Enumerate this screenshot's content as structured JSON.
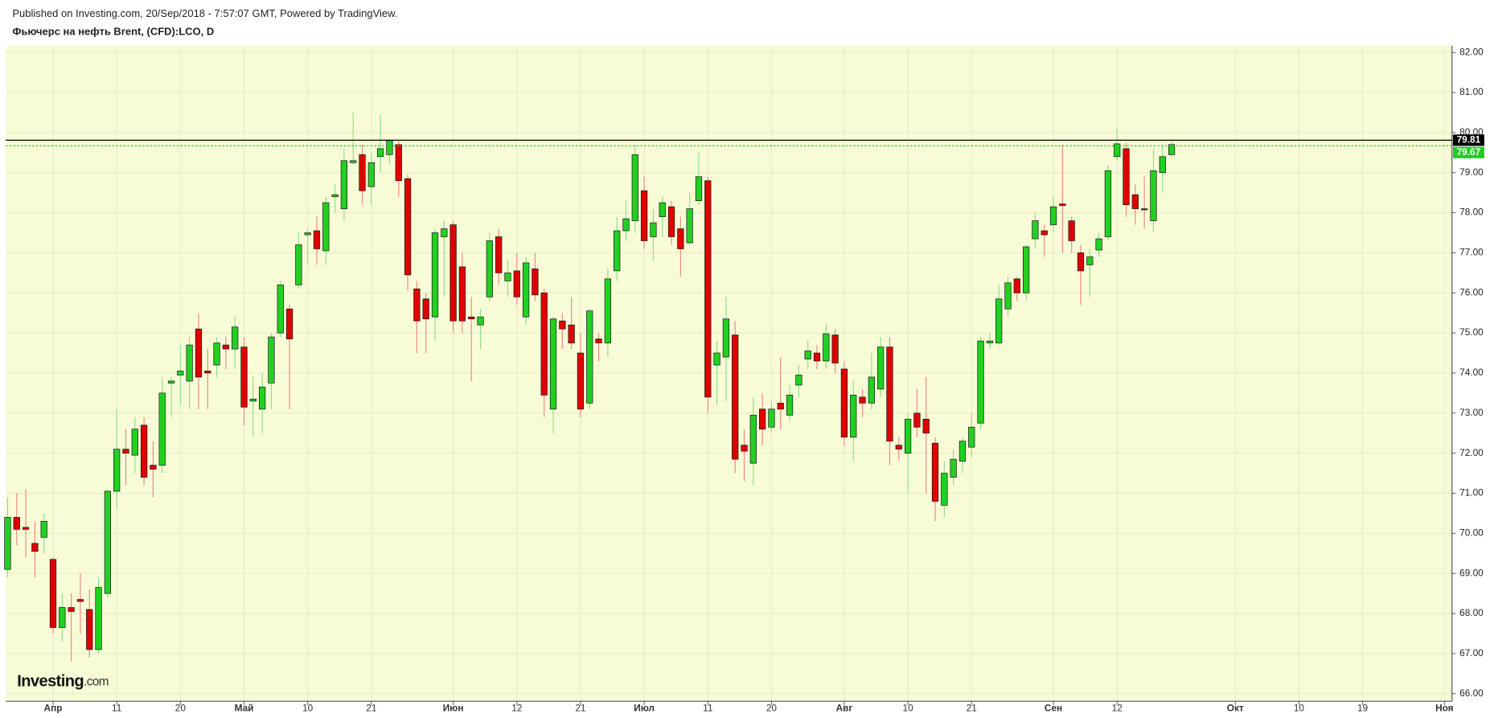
{
  "chart_data": {
    "type": "candlestick",
    "source": "Published on Investing.com, 20/Sep/2018 - 7:57:07 GMT, Powered by TradingView.",
    "title": "Фьючерс на нефть Brent, (CFD):LCO, D",
    "logo": {
      "brand": "Investing",
      "suffix": ".com"
    },
    "up_color": "#22d022",
    "down_color": "#e00000",
    "background": "#f8fcd6",
    "grid": true,
    "categories": [
      null,
      null,
      null,
      null,
      null,
      "Апр",
      null,
      null,
      null,
      null,
      null,
      null,
      "11",
      null,
      null,
      null,
      null,
      null,
      null,
      "20",
      null,
      null,
      null,
      null,
      null,
      null,
      "Май",
      null,
      null,
      null,
      null,
      null,
      null,
      "10",
      null,
      null,
      null,
      null,
      null,
      null,
      "21",
      null,
      null,
      null,
      null,
      null,
      null,
      null,
      null,
      "Июн",
      null,
      null,
      null,
      null,
      null,
      null,
      "12",
      null,
      null,
      null,
      null,
      null,
      null,
      "21",
      null,
      null,
      null,
      null,
      null,
      null,
      "Июл",
      null,
      null,
      null,
      null,
      null,
      null,
      "11",
      null,
      null,
      null,
      null,
      null,
      null,
      "20",
      null,
      null,
      null,
      null,
      null,
      null,
      null,
      "Авг",
      null,
      null,
      null,
      null,
      null,
      null,
      "10",
      null,
      null,
      null,
      null,
      null,
      null,
      "21",
      null,
      null,
      null,
      null,
      null,
      null,
      null,
      null,
      "Сен",
      null,
      null,
      null,
      null,
      null,
      null,
      "12",
      null,
      null,
      null,
      null,
      null,
      null,
      null,
      null,
      null,
      null,
      null,
      null,
      "Окт",
      null,
      null,
      null,
      null,
      null,
      null,
      "10",
      null,
      null,
      null,
      null,
      null,
      null,
      "19",
      null,
      null,
      null,
      null,
      null,
      null,
      null,
      null,
      "Ноя"
    ],
    "open": [
      69.1,
      70.4,
      70.15,
      69.75,
      69.9,
      69.35,
      67.65,
      68.15,
      68.35,
      68.1,
      67.1,
      68.5,
      71.05,
      72.1,
      71.95,
      72.7,
      71.7,
      71.7,
      73.75,
      73.95,
      73.8,
      75.1,
      74.05,
      74.2,
      74.7,
      74.6,
      74.65,
      73.3,
      73.1,
      73.75,
      75.0,
      75.6,
      76.2,
      77.45,
      77.55,
      77.05,
      78.4,
      78.1,
      79.25,
      79.45,
      78.65,
      79.4,
      79.45,
      79.7,
      78.85,
      76.1,
      75.85,
      75.4,
      77.4,
      77.7,
      76.65,
      75.4,
      75.2,
      75.9,
      77.4,
      76.3,
      76.55,
      75.4,
      76.6,
      76.0,
      73.1,
      75.3,
      75.2,
      74.5,
      73.25,
      74.85,
      74.75,
      76.55,
      77.55,
      77.8,
      78.55,
      77.4,
      77.9,
      78.15,
      77.6,
      77.25,
      78.3,
      78.8,
      74.2,
      74.4,
      74.95,
      72.2,
      71.75,
      73.1,
      72.65,
      73.25,
      72.95,
      73.7,
      74.35,
      74.5,
      74.3,
      74.95,
      74.1,
      72.4,
      73.4,
      73.25,
      73.6,
      74.65,
      72.2,
      72.0,
      73.0,
      72.85,
      72.25,
      70.7,
      71.4,
      71.8,
      72.15,
      72.75,
      74.75,
      74.75,
      75.6,
      76.35,
      76.0,
      77.35,
      77.55,
      77.7,
      78.22,
      77.8,
      77.0,
      76.7,
      77.07,
      77.4,
      79.4,
      79.6,
      78.45,
      78.1,
      77.8,
      79.0,
      79.45,
      null,
      null,
      null,
      null,
      null,
      null,
      null,
      null,
      null,
      null,
      null,
      null,
      null,
      null,
      null,
      null,
      null,
      null,
      null,
      null,
      null,
      null,
      null,
      null,
      null,
      null,
      null,
      null,
      null,
      null
    ],
    "high": [
      70.9,
      71.0,
      71.1,
      70.3,
      70.5,
      69.4,
      68.5,
      68.5,
      69.0,
      68.6,
      68.9,
      71.1,
      73.1,
      72.6,
      72.9,
      72.9,
      72.3,
      73.9,
      73.9,
      74.7,
      74.9,
      75.5,
      74.6,
      74.9,
      74.9,
      75.4,
      74.9,
      73.9,
      74.0,
      75.0,
      76.3,
      75.7,
      77.5,
      77.6,
      77.9,
      78.4,
      78.7,
      79.6,
      80.5,
      79.7,
      79.5,
      80.45,
      79.85,
      79.8,
      78.95,
      76.3,
      76.0,
      77.6,
      77.8,
      77.8,
      77.0,
      75.9,
      75.6,
      77.5,
      77.6,
      76.8,
      77.0,
      76.9,
      77.0,
      76.1,
      75.4,
      75.5,
      75.9,
      75.0,
      75.6,
      75.0,
      76.6,
      77.9,
      78.3,
      79.7,
      78.9,
      78.1,
      78.4,
      78.3,
      77.9,
      78.5,
      79.5,
      78.9,
      74.8,
      75.9,
      75.3,
      72.6,
      73.4,
      73.5,
      73.3,
      74.4,
      73.7,
      74.2,
      74.8,
      74.7,
      75.25,
      75.1,
      74.3,
      73.8,
      73.6,
      74.5,
      74.9,
      74.9,
      72.4,
      73.0,
      73.6,
      73.9,
      72.4,
      71.8,
      72.1,
      72.4,
      73.0,
      74.9,
      75.0,
      76.2,
      76.4,
      76.4,
      77.2,
      78.0,
      77.7,
      78.4,
      79.7,
      77.9,
      77.2,
      77.1,
      77.5,
      79.2,
      80.1,
      79.75,
      78.7,
      78.9,
      79.6,
      79.7,
      79.8,
      null,
      null,
      null,
      null,
      null,
      null,
      null,
      null,
      null,
      null,
      null,
      null,
      null,
      null,
      null,
      null,
      null,
      null,
      null,
      null,
      null,
      null,
      null,
      null,
      null,
      null,
      null,
      null,
      null,
      null
    ],
    "low": [
      68.9,
      69.7,
      69.4,
      68.9,
      69.5,
      67.5,
      67.3,
      66.8,
      67.5,
      66.9,
      67.0,
      68.4,
      70.6,
      71.2,
      71.5,
      71.2,
      70.9,
      71.5,
      72.9,
      73.2,
      73.1,
      73.1,
      73.1,
      73.9,
      74.1,
      74.1,
      72.7,
      72.4,
      72.5,
      73.1,
      74.9,
      73.1,
      76.1,
      76.7,
      76.7,
      76.7,
      78.0,
      77.8,
      79.2,
      78.2,
      78.2,
      79.0,
      79.2,
      78.4,
      76.05,
      74.5,
      74.5,
      74.8,
      75.9,
      75.0,
      75.0,
      73.8,
      74.6,
      75.8,
      76.2,
      75.9,
      75.7,
      75.2,
      75.8,
      72.9,
      72.5,
      74.6,
      74.6,
      72.9,
      73.1,
      74.3,
      74.4,
      76.3,
      77.3,
      77.5,
      77.1,
      76.8,
      77.4,
      77.2,
      76.4,
      77.2,
      78.2,
      73.0,
      73.2,
      73.3,
      71.5,
      71.3,
      71.2,
      72.2,
      72.5,
      72.6,
      72.8,
      73.4,
      74.1,
      74.1,
      74.1,
      74.0,
      72.2,
      71.8,
      72.9,
      73.1,
      73.4,
      71.7,
      71.8,
      71.0,
      72.4,
      71.0,
      70.3,
      70.4,
      71.2,
      71.5,
      71.9,
      72.6,
      74.6,
      74.7,
      75.4,
      75.8,
      75.8,
      77.1,
      76.9,
      77.5,
      77.0,
      77.0,
      75.7,
      75.9,
      76.9,
      77.3,
      79.3,
      77.9,
      77.7,
      77.6,
      77.5,
      78.5,
      79.4,
      null,
      null,
      null,
      null,
      null,
      null,
      null,
      null,
      null,
      null,
      null,
      null,
      null,
      null,
      null,
      null,
      null,
      null,
      null,
      null,
      null,
      null,
      null,
      null,
      null,
      null,
      null,
      null,
      null,
      null
    ],
    "close": [
      70.4,
      70.1,
      70.1,
      69.55,
      70.3,
      67.65,
      68.15,
      68.05,
      68.3,
      67.1,
      68.65,
      71.05,
      72.1,
      72.0,
      72.6,
      71.4,
      71.6,
      73.5,
      73.8,
      74.05,
      74.7,
      73.9,
      74.0,
      74.75,
      74.6,
      75.15,
      73.15,
      73.35,
      73.65,
      74.9,
      76.2,
      74.85,
      77.2,
      77.5,
      77.1,
      78.25,
      78.45,
      79.3,
      79.3,
      78.55,
      79.25,
      79.6,
      79.8,
      78.8,
      76.45,
      75.3,
      75.35,
      77.5,
      77.6,
      75.3,
      75.3,
      75.35,
      75.4,
      77.3,
      76.5,
      76.5,
      75.9,
      76.75,
      75.95,
      73.45,
      75.35,
      75.1,
      74.75,
      73.1,
      75.55,
      74.75,
      76.35,
      77.55,
      77.85,
      79.45,
      77.3,
      77.75,
      78.25,
      77.4,
      77.1,
      78.1,
      78.9,
      73.4,
      74.5,
      75.35,
      71.85,
      72.05,
      72.95,
      72.6,
      73.1,
      73.1,
      73.45,
      73.95,
      74.55,
      74.3,
      74.98,
      74.25,
      72.4,
      73.45,
      73.25,
      73.9,
      74.65,
      72.3,
      72.1,
      72.85,
      72.65,
      72.5,
      70.8,
      71.5,
      71.85,
      72.3,
      72.65,
      74.8,
      74.8,
      75.85,
      76.25,
      76.0,
      77.15,
      77.8,
      77.45,
      78.15,
      78.18,
      77.3,
      76.55,
      76.9,
      77.35,
      79.05,
      79.72,
      78.2,
      78.1,
      78.08,
      79.05,
      79.4,
      79.7,
      null,
      null,
      null,
      null,
      null,
      null,
      null,
      null,
      null,
      null,
      null,
      null,
      null,
      null,
      null,
      null,
      null,
      null,
      null,
      null,
      null,
      null,
      null,
      null,
      null,
      null,
      null,
      null,
      null,
      null
    ],
    "ylim": [
      65.81,
      82.17
    ],
    "yticks": [
      {
        "value": 66,
        "label": "66.00"
      },
      {
        "value": 67,
        "label": "67.00"
      },
      {
        "value": 68,
        "label": "68.00"
      },
      {
        "value": 69,
        "label": "69.00"
      },
      {
        "value": 70,
        "label": "70.00"
      },
      {
        "value": 71,
        "label": "71.00"
      },
      {
        "value": 72,
        "label": "72.00"
      },
      {
        "value": 73,
        "label": "73.00"
      },
      {
        "value": 74,
        "label": "74.00"
      },
      {
        "value": 75,
        "label": "75.00"
      },
      {
        "value": 76,
        "label": "76.00"
      },
      {
        "value": 77,
        "label": "77.00"
      },
      {
        "value": 78,
        "label": "78.00"
      },
      {
        "value": 79,
        "label": "79.00"
      },
      {
        "value": 80,
        "label": "80.00"
      },
      {
        "value": 81,
        "label": "81.00"
      },
      {
        "value": 82,
        "label": "82.00"
      }
    ],
    "price_lines": [
      {
        "value": 79.81,
        "color": "#000000"
      },
      {
        "value": 79.67,
        "color": "#22cc22"
      }
    ]
  }
}
